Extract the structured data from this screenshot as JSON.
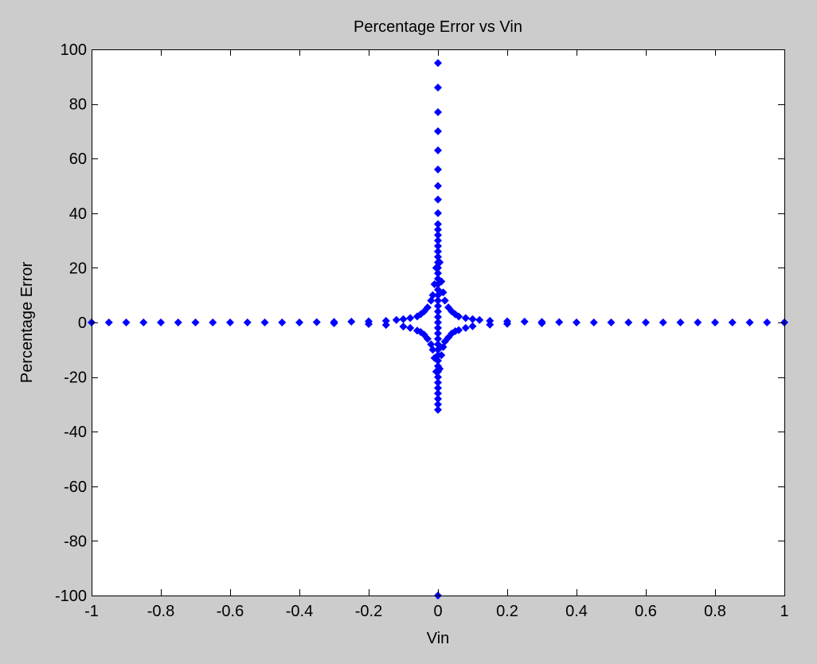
{
  "figure": {
    "background_color": "#cccccc",
    "axes_background_color": "#ffffff",
    "marker_color": "#0000ff"
  },
  "chart_data": {
    "type": "scatter",
    "title": "Percentage Error vs Vin",
    "xlabel": "Vin",
    "ylabel": "Percentage Error",
    "xlim": [
      -1,
      1
    ],
    "ylim": [
      -100,
      100
    ],
    "xticks": [
      -1,
      -0.8,
      -0.6,
      -0.4,
      -0.2,
      0,
      0.2,
      0.4,
      0.6,
      0.8,
      1
    ],
    "xtick_labels": [
      "-1",
      "-0.8",
      "-0.6",
      "-0.4",
      "-0.2",
      "0",
      "0.2",
      "0.4",
      "0.6",
      "0.8",
      "1"
    ],
    "yticks": [
      -100,
      -80,
      -60,
      -40,
      -20,
      0,
      20,
      40,
      60,
      80,
      100
    ],
    "ytick_labels": [
      "-100",
      "-80",
      "-60",
      "-40",
      "-20",
      "0",
      "20",
      "40",
      "60",
      "80",
      "100"
    ],
    "grid": false,
    "marker": "diamond",
    "series": [
      {
        "color": "#0000ff",
        "points": [
          [
            -1.0,
            0
          ],
          [
            -0.95,
            0
          ],
          [
            -0.9,
            0
          ],
          [
            -0.85,
            0
          ],
          [
            -0.8,
            0
          ],
          [
            -0.75,
            0
          ],
          [
            -0.7,
            0
          ],
          [
            -0.65,
            0
          ],
          [
            -0.6,
            0
          ],
          [
            -0.55,
            0
          ],
          [
            -0.5,
            0
          ],
          [
            -0.45,
            0
          ],
          [
            -0.4,
            0
          ],
          [
            -0.35,
            0.1
          ],
          [
            -0.3,
            0.2
          ],
          [
            -0.25,
            0.3
          ],
          [
            -0.2,
            0.4
          ],
          [
            -0.15,
            0.6
          ],
          [
            -0.12,
            0.9
          ],
          [
            -0.1,
            1.2
          ],
          [
            -0.08,
            1.6
          ],
          [
            -0.06,
            2.2
          ],
          [
            -0.05,
            3
          ],
          [
            -0.04,
            4
          ],
          [
            -0.03,
            5.5
          ],
          [
            -0.02,
            8
          ],
          [
            -0.015,
            10
          ],
          [
            -0.01,
            14
          ],
          [
            -0.005,
            20
          ],
          [
            -0.3,
            -0.3
          ],
          [
            -0.2,
            -0.6
          ],
          [
            -0.15,
            -0.9
          ],
          [
            -0.1,
            -1.5
          ],
          [
            -0.08,
            -2
          ],
          [
            -0.06,
            -3
          ],
          [
            -0.05,
            -3.5
          ],
          [
            -0.04,
            -4.5
          ],
          [
            -0.03,
            -6
          ],
          [
            -0.02,
            -8
          ],
          [
            -0.015,
            -10
          ],
          [
            -0.01,
            -13
          ],
          [
            -0.005,
            -18
          ],
          [
            0.005,
            22
          ],
          [
            0.01,
            15
          ],
          [
            0.015,
            11
          ],
          [
            0.02,
            8
          ],
          [
            0.03,
            5.5
          ],
          [
            0.04,
            4
          ],
          [
            0.05,
            3
          ],
          [
            0.06,
            2.2
          ],
          [
            0.08,
            1.6
          ],
          [
            0.1,
            1.2
          ],
          [
            0.12,
            0.9
          ],
          [
            0.15,
            0.6
          ],
          [
            0.2,
            0.4
          ],
          [
            0.25,
            0.3
          ],
          [
            0.3,
            0.2
          ],
          [
            0.35,
            0.1
          ],
          [
            0.005,
            -17
          ],
          [
            0.01,
            -12
          ],
          [
            0.015,
            -9
          ],
          [
            0.02,
            -7
          ],
          [
            0.03,
            -5.5
          ],
          [
            0.04,
            -4
          ],
          [
            0.05,
            -3.2
          ],
          [
            0.06,
            -2.8
          ],
          [
            0.08,
            -2
          ],
          [
            0.1,
            -1.4
          ],
          [
            0.15,
            -0.8
          ],
          [
            0.2,
            -0.5
          ],
          [
            0.3,
            -0.3
          ],
          [
            0.4,
            0
          ],
          [
            0.45,
            0
          ],
          [
            0.5,
            0
          ],
          [
            0.55,
            0
          ],
          [
            0.6,
            0
          ],
          [
            0.65,
            0
          ],
          [
            0.7,
            0
          ],
          [
            0.75,
            0
          ],
          [
            0.8,
            0
          ],
          [
            0.85,
            0
          ],
          [
            0.9,
            0
          ],
          [
            0.95,
            0
          ],
          [
            1.0,
            0
          ],
          [
            0,
            95
          ],
          [
            0,
            86
          ],
          [
            0,
            77
          ],
          [
            0,
            70
          ],
          [
            0,
            63
          ],
          [
            0,
            56
          ],
          [
            0,
            50
          ],
          [
            0,
            45
          ],
          [
            0,
            40
          ],
          [
            0,
            36
          ],
          [
            0,
            34
          ],
          [
            0,
            32
          ],
          [
            0,
            30
          ],
          [
            0,
            28
          ],
          [
            0,
            26
          ],
          [
            0,
            24
          ],
          [
            0,
            22
          ],
          [
            0,
            20
          ],
          [
            0,
            18
          ],
          [
            0,
            16
          ],
          [
            0,
            14
          ],
          [
            0,
            12
          ],
          [
            0,
            10
          ],
          [
            0,
            8
          ],
          [
            0,
            6
          ],
          [
            0,
            4
          ],
          [
            0,
            2
          ],
          [
            0,
            0
          ],
          [
            0,
            -2
          ],
          [
            0,
            -4
          ],
          [
            0,
            -6
          ],
          [
            0,
            -8
          ],
          [
            0,
            -10
          ],
          [
            0,
            -12
          ],
          [
            0,
            -14
          ],
          [
            0,
            -16
          ],
          [
            0,
            -18
          ],
          [
            0,
            -20
          ],
          [
            0,
            -22
          ],
          [
            0,
            -24
          ],
          [
            0,
            -26
          ],
          [
            0,
            -28
          ],
          [
            0,
            -30
          ],
          [
            0,
            -32
          ],
          [
            0,
            -100
          ]
        ]
      }
    ]
  }
}
